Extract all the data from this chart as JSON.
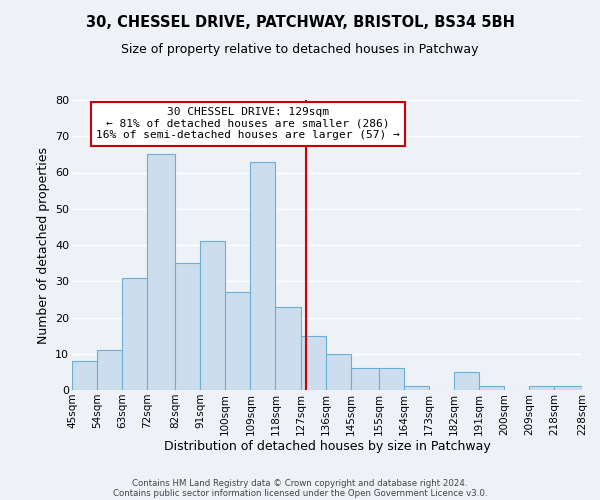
{
  "title": "30, CHESSEL DRIVE, PATCHWAY, BRISTOL, BS34 5BH",
  "subtitle": "Size of property relative to detached houses in Patchway",
  "xlabel": "Distribution of detached houses by size in Patchway",
  "ylabel": "Number of detached properties",
  "bar_color": "#ccdded",
  "bar_edge_color": "#6baed6",
  "background_color": "#eef2f7",
  "grid_color": "#ffffff",
  "annotation_box_color": "#cc0000",
  "vline_color": "#cc0000",
  "all_bins": [
    45,
    54,
    63,
    72,
    82,
    91,
    100,
    109,
    118,
    127,
    136,
    145,
    155,
    164,
    173,
    182,
    191,
    200,
    209,
    218,
    228
  ],
  "all_counts": [
    8,
    11,
    31,
    65,
    35,
    41,
    27,
    63,
    23,
    15,
    10,
    6,
    6,
    1,
    0,
    5,
    1,
    0,
    1,
    1
  ],
  "tick_labels": [
    "45sqm",
    "54sqm",
    "63sqm",
    "72sqm",
    "82sqm",
    "91sqm",
    "100sqm",
    "109sqm",
    "118sqm",
    "127sqm",
    "136sqm",
    "145sqm",
    "155sqm",
    "164sqm",
    "173sqm",
    "182sqm",
    "191sqm",
    "200sqm",
    "209sqm",
    "218sqm",
    "228sqm"
  ],
  "vline_x": 129,
  "annotation_title": "30 CHESSEL DRIVE: 129sqm",
  "annotation_line1": "← 81% of detached houses are smaller (286)",
  "annotation_line2": "16% of semi-detached houses are larger (57) →",
  "ylim": [
    0,
    80
  ],
  "yticks": [
    0,
    10,
    20,
    30,
    40,
    50,
    60,
    70,
    80
  ],
  "footer1": "Contains HM Land Registry data © Crown copyright and database right 2024.",
  "footer2": "Contains public sector information licensed under the Open Government Licence v3.0."
}
